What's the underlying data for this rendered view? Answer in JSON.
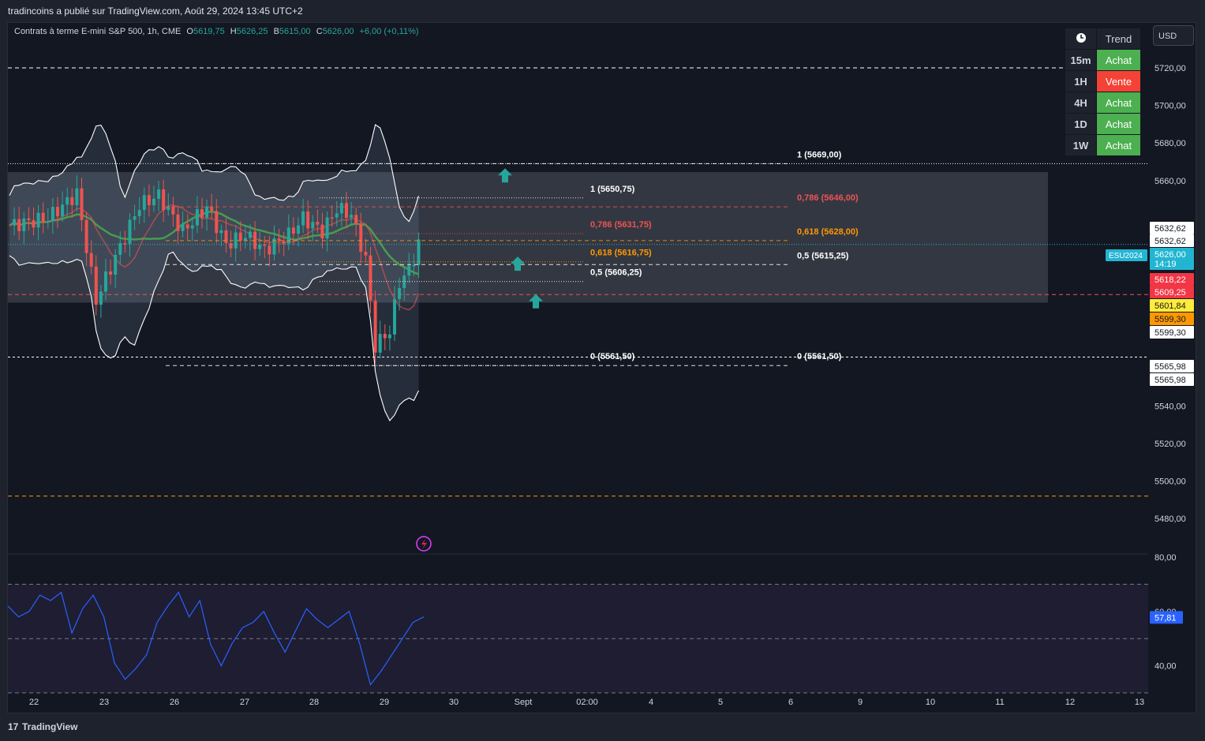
{
  "publisher_line": "tradincoins a publié sur TradingView.com, Août 29, 2024 13:45 UTC+2",
  "legend": {
    "symbol": "Contrats à terme E-mini S&P 500, 1h, CME",
    "o_label": "O",
    "o": "5619,75",
    "h_label": "H",
    "h": "5626,25",
    "b_label": "B",
    "b": "5615,00",
    "c_label": "C",
    "c": "5626,00",
    "change": "+6,00 (+0,11%)"
  },
  "currency_button": "USD",
  "trend_table": {
    "header_icon": "clock-icon",
    "header": "Trend",
    "rows": [
      {
        "tf": "15m",
        "signal": "Achat",
        "color": "#4caf50"
      },
      {
        "tf": "1H",
        "signal": "Vente",
        "color": "#f44336"
      },
      {
        "tf": "4H",
        "signal": "Achat",
        "color": "#4caf50"
      },
      {
        "tf": "1D",
        "signal": "Achat",
        "color": "#4caf50"
      },
      {
        "tf": "1W",
        "signal": "Achat",
        "color": "#4caf50"
      }
    ]
  },
  "footer": {
    "brand": "TradingView",
    "logo_icon": "tradingview-logo-icon"
  },
  "colors": {
    "up": "#26a69a",
    "down": "#ef5350",
    "rsi": "#2962ff",
    "orange": "#ff9800",
    "background": "#131722"
  },
  "chart_data": [
    {
      "type": "candlestick",
      "title": "",
      "timeframe": "1h",
      "x_ticks": [
        "22",
        "23",
        "26",
        "27",
        "28",
        "29",
        "30",
        "Sept",
        "02:00",
        "4",
        "5",
        "6",
        "9",
        "10",
        "11",
        "12",
        "13"
      ],
      "y_ticks": [
        "5720,00",
        "5700,00",
        "5680,00",
        "5660,00",
        "5540,00",
        "5520,00",
        "5500,00",
        "5480,00"
      ],
      "ylim": [
        5462,
        5741
      ],
      "price_path": [
        [
          0,
          5636
        ],
        [
          8,
          5640
        ],
        [
          14,
          5653
        ],
        [
          18,
          5596
        ],
        [
          20,
          5608
        ],
        [
          27,
          5647
        ],
        [
          31,
          5652
        ],
        [
          36,
          5633
        ],
        [
          41,
          5646
        ],
        [
          45,
          5626
        ],
        [
          49,
          5631
        ],
        [
          53,
          5623
        ],
        [
          58,
          5631
        ],
        [
          61,
          5640
        ],
        [
          65,
          5633
        ],
        [
          68,
          5645
        ],
        [
          71,
          5642
        ],
        [
          74,
          5618
        ],
        [
          76,
          5572
        ],
        [
          79,
          5580
        ],
        [
          81,
          5606
        ],
        [
          83,
          5612
        ],
        [
          85,
          5626
        ]
      ],
      "fibonacci": [
        {
          "label": "1 (5669,00)",
          "value": 5669.0,
          "color": "#ffffff"
        },
        {
          "label": "0,786 (5646,00)",
          "value": 5646.0,
          "color": "#ef5350"
        },
        {
          "label": "0,618 (5628,00)",
          "value": 5628.0,
          "color": "#ff9800"
        },
        {
          "label": "0,5 (5615,25)",
          "value": 5615.25,
          "color": "#ffffff"
        },
        {
          "label": "0 (5561,50)",
          "value": 5561.5,
          "color": "#ffffff"
        },
        {
          "label": "1 (5650,75)",
          "value": 5650.75,
          "color": "#ffffff"
        },
        {
          "label": "0,786 (5631,75)",
          "value": 5631.75,
          "color": "#ef5350"
        },
        {
          "label": "0,618 (5616,75)",
          "value": 5616.75,
          "color": "#ff9800"
        },
        {
          "label": "0,5 (5606,25)",
          "value": 5606.25,
          "color": "#ffffff"
        },
        {
          "label": "0 (5561,50)",
          "value": 5561.5,
          "color": "#ffffff"
        }
      ],
      "horizontal_levels": [
        5720,
        5599.3,
        5565.98,
        5492
      ],
      "zone": {
        "high": 5664.5,
        "low": 5595
      },
      "price_tags": [
        {
          "text": "5632,62",
          "value": 5632.62,
          "bg": "#ffffff",
          "fg": "#131722"
        },
        {
          "text": "5632,62",
          "value": 5632.62,
          "bg": "#ffffff",
          "fg": "#131722"
        },
        {
          "text": "5626,00",
          "sub": "14:19",
          "value": 5626.0,
          "bg": "#22b5d2",
          "fg": "#ffffff"
        },
        {
          "text": "5618,22",
          "value": 5618.22,
          "bg": "#f23645",
          "fg": "#ffffff"
        },
        {
          "text": "5609,25",
          "value": 5609.25,
          "bg": "#f23645",
          "fg": "#ffffff"
        },
        {
          "text": "5601,84",
          "value": 5601.84,
          "bg": "#ffeb3b",
          "fg": "#131722"
        },
        {
          "text": "5599,30",
          "value": 5599.3,
          "bg": "#ff9800",
          "fg": "#131722"
        },
        {
          "text": "5599,30",
          "value": 5599.3,
          "bg": "#ffffff",
          "fg": "#131722"
        },
        {
          "text": "5565,98",
          "value": 5565.98,
          "bg": "#ffffff",
          "fg": "#131722"
        },
        {
          "text": "5565,98",
          "value": 5565.98,
          "bg": "#ffffff",
          "fg": "#131722"
        }
      ],
      "symbol_tag": "ESU2024",
      "arrows": "up",
      "legend": "none"
    },
    {
      "type": "line",
      "title": "",
      "y_ticks": [
        "80,00",
        "60,00",
        "40,00"
      ],
      "ylim": [
        30,
        80
      ],
      "bands": [
        70,
        50,
        30
      ],
      "last_value": "57,81",
      "values": [
        62,
        58,
        60,
        66,
        64,
        67,
        52,
        61,
        66,
        58,
        41,
        35,
        39,
        44,
        56,
        62,
        67,
        58,
        64,
        48,
        40,
        48,
        54,
        56,
        60,
        52,
        45,
        53,
        61,
        57,
        54,
        57,
        60,
        48,
        33,
        38,
        44,
        50,
        56,
        58
      ]
    }
  ]
}
